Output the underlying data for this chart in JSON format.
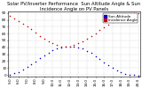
{
  "title": "Solar PV/Inverter Performance  Sun Altitude Angle & Sun Incidence Angle on PV Panels",
  "altitude_times": [
    5.0,
    5.5,
    6.0,
    6.5,
    7.0,
    7.5,
    8.0,
    8.5,
    9.0,
    9.5,
    10.0,
    10.5,
    11.0,
    11.5,
    12.0,
    12.5,
    13.0,
    13.5,
    14.0,
    14.5,
    15.0,
    15.5,
    16.0,
    16.5,
    17.0,
    17.5,
    18.0,
    18.5,
    19.0,
    19.5,
    20.0
  ],
  "altitude_angles": [
    0.5,
    2.0,
    4.5,
    7.5,
    11.0,
    15.0,
    19.5,
    24.0,
    28.5,
    32.0,
    35.5,
    38.0,
    40.0,
    41.0,
    41.5,
    41.0,
    40.0,
    38.0,
    35.0,
    31.5,
    27.5,
    23.0,
    18.5,
    14.0,
    10.0,
    6.5,
    3.5,
    1.5,
    0.2,
    -0.5,
    -1.0
  ],
  "incidence_times": [
    5.0,
    5.5,
    6.0,
    6.5,
    7.0,
    7.5,
    8.0,
    8.5,
    9.0,
    9.5,
    10.0,
    10.5,
    11.0,
    11.5,
    12.0,
    12.5,
    13.0,
    13.5,
    14.0,
    14.5,
    15.0,
    15.5,
    16.0,
    16.5,
    17.0,
    17.5,
    18.0,
    18.5,
    19.0,
    19.5,
    20.0
  ],
  "incidence_angles": [
    86.0,
    82.0,
    78.5,
    74.5,
    70.5,
    66.5,
    62.0,
    57.0,
    52.5,
    48.5,
    45.5,
    43.0,
    41.5,
    41.0,
    41.5,
    43.0,
    45.5,
    48.5,
    52.0,
    56.0,
    60.5,
    65.0,
    69.5,
    73.5,
    77.0,
    80.5,
    83.5,
    86.0,
    88.0,
    89.5,
    90.0
  ],
  "altitude_color": "#0000cc",
  "incidence_color": "#cc0000",
  "background_color": "#ffffff",
  "grid_color": "#aaaaaa",
  "ylim": [
    -2,
    92
  ],
  "ytick_positions": [
    0,
    10,
    20,
    30,
    40,
    50,
    60,
    70,
    80,
    90
  ],
  "ytick_labels": [
    "0",
    "10",
    "20",
    "30",
    "40",
    "50",
    "60",
    "70",
    "80",
    "90"
  ],
  "xlim": [
    4.8,
    20.2
  ],
  "xtick_positions": [
    5,
    6,
    7,
    8,
    9,
    10,
    11,
    12,
    13,
    14,
    15,
    16,
    17,
    18,
    19,
    20
  ],
  "xtick_labels": [
    "5:0",
    "6:0",
    "7:0",
    "8:0",
    "9:0",
    "10:0",
    "11:0",
    "12:0",
    "13:0",
    "14:0",
    "15:0",
    "16:0",
    "17:0",
    "18:0",
    "19:0",
    "20:0"
  ],
  "legend_altitude": "Sun Altitude",
  "legend_incidence": "Incidence Angle",
  "title_fontsize": 3.8,
  "tick_fontsize": 3.0,
  "legend_fontsize": 3.0,
  "marker_size": 1.2
}
